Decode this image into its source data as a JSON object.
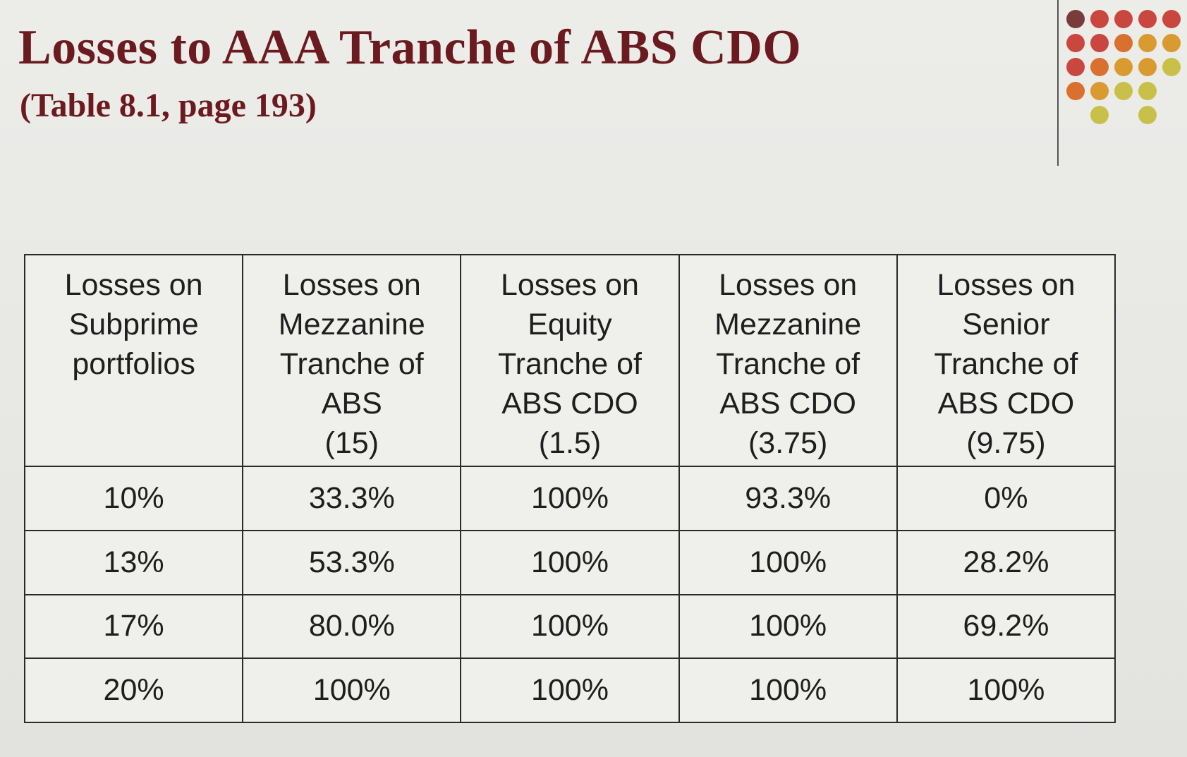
{
  "slide": {
    "title": "Losses to AAA Tranche of ABS CDO",
    "subtitle": "(Table 8.1, page 193)"
  },
  "decor": {
    "rule_color": "#555555",
    "dot_colors": [
      "#7a3b3b",
      "#c9473f",
      "#d9702f",
      "#d99a2f",
      "#c9c04a"
    ]
  },
  "table": {
    "headers": [
      "Losses on Subprime portfolios",
      "Losses on Mezzanine Tranche of ABS (15)",
      "Losses on Equity Tranche of ABS CDO (1.5)",
      "Losses on Mezzanine Tranche of ABS CDO (3.75)",
      "Losses on Senior Tranche of ABS CDO (9.75)"
    ],
    "header_lines": [
      [
        "Losses on",
        "Subprime",
        "portfolios"
      ],
      [
        "Losses on",
        "Mezzanine",
        "Tranche of",
        "ABS",
        "(15)"
      ],
      [
        "Losses on",
        "Equity",
        "Tranche of",
        "ABS CDO",
        "(1.5)"
      ],
      [
        "Losses on",
        "Mezzanine",
        "Tranche of",
        "ABS CDO",
        "(3.75)"
      ],
      [
        "Losses on",
        "Senior",
        "Tranche of",
        "ABS CDO",
        "(9.75)"
      ]
    ],
    "rows": [
      [
        "10%",
        "33.3%",
        "100%",
        "93.3%",
        "0%"
      ],
      [
        "13%",
        "53.3%",
        "100%",
        "100%",
        "28.2%"
      ],
      [
        "17%",
        "80.0%",
        "100%",
        "100%",
        "69.2%"
      ],
      [
        "20%",
        "100%",
        "100%",
        "100%",
        "100%"
      ]
    ]
  }
}
